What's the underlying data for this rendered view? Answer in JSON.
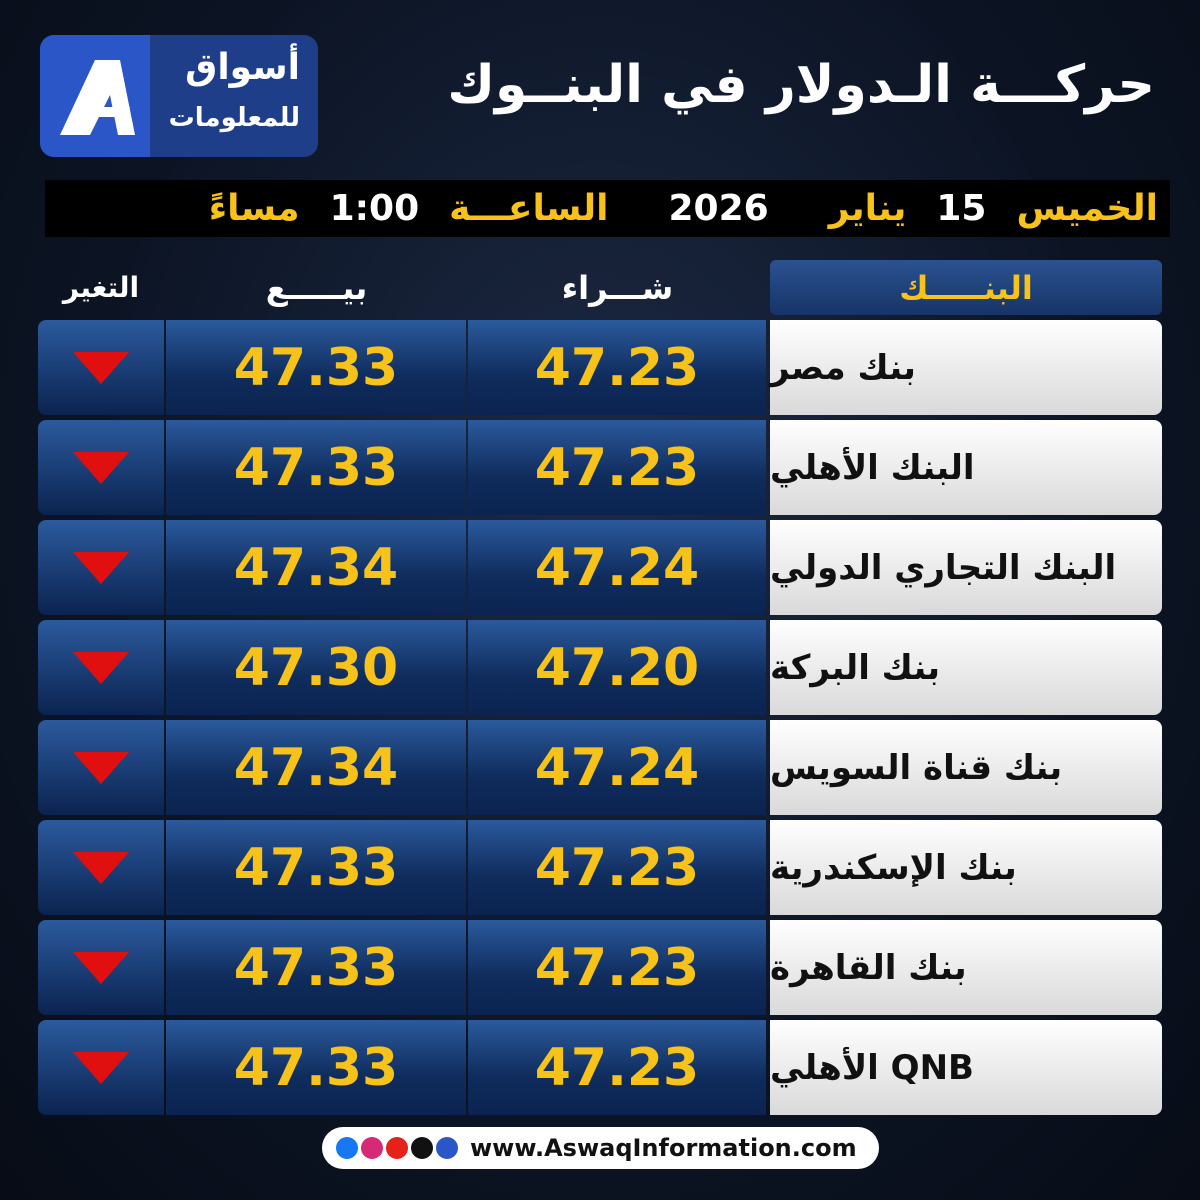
{
  "header": {
    "title": "حركـــة الـدولار في البنــوك",
    "logo": {
      "name": "أسواق",
      "subtitle": "للمعلومات"
    }
  },
  "date_bar": {
    "day": "الخميس",
    "date": "15",
    "month": "يناير",
    "year": "2026",
    "time_label": "الساعـــة",
    "time": "1:00",
    "period": "مساءً"
  },
  "table": {
    "columns": [
      "البنـــــك",
      "شـــراء",
      "بيـــــع",
      "التغير"
    ],
    "rows": [
      [
        "بنك مصر",
        "47.23",
        "47.33"
      ],
      [
        "البنك الأهلي",
        "47.23",
        "47.33"
      ],
      [
        "البنك التجاري الدولي",
        "47.24",
        "47.34"
      ],
      [
        "بنك البركة",
        "47.20",
        "47.30"
      ],
      [
        "بنك قناة السويس",
        "47.24",
        "47.34"
      ],
      [
        "بنك الإسكندرية",
        "47.23",
        "47.33"
      ],
      [
        "بنك القاهرة",
        "47.23",
        "47.33"
      ],
      [
        "QNB الأهلي",
        "47.23",
        "47.33"
      ]
    ]
  },
  "footer": {
    "url": "www.AswaqInformation.com"
  }
}
